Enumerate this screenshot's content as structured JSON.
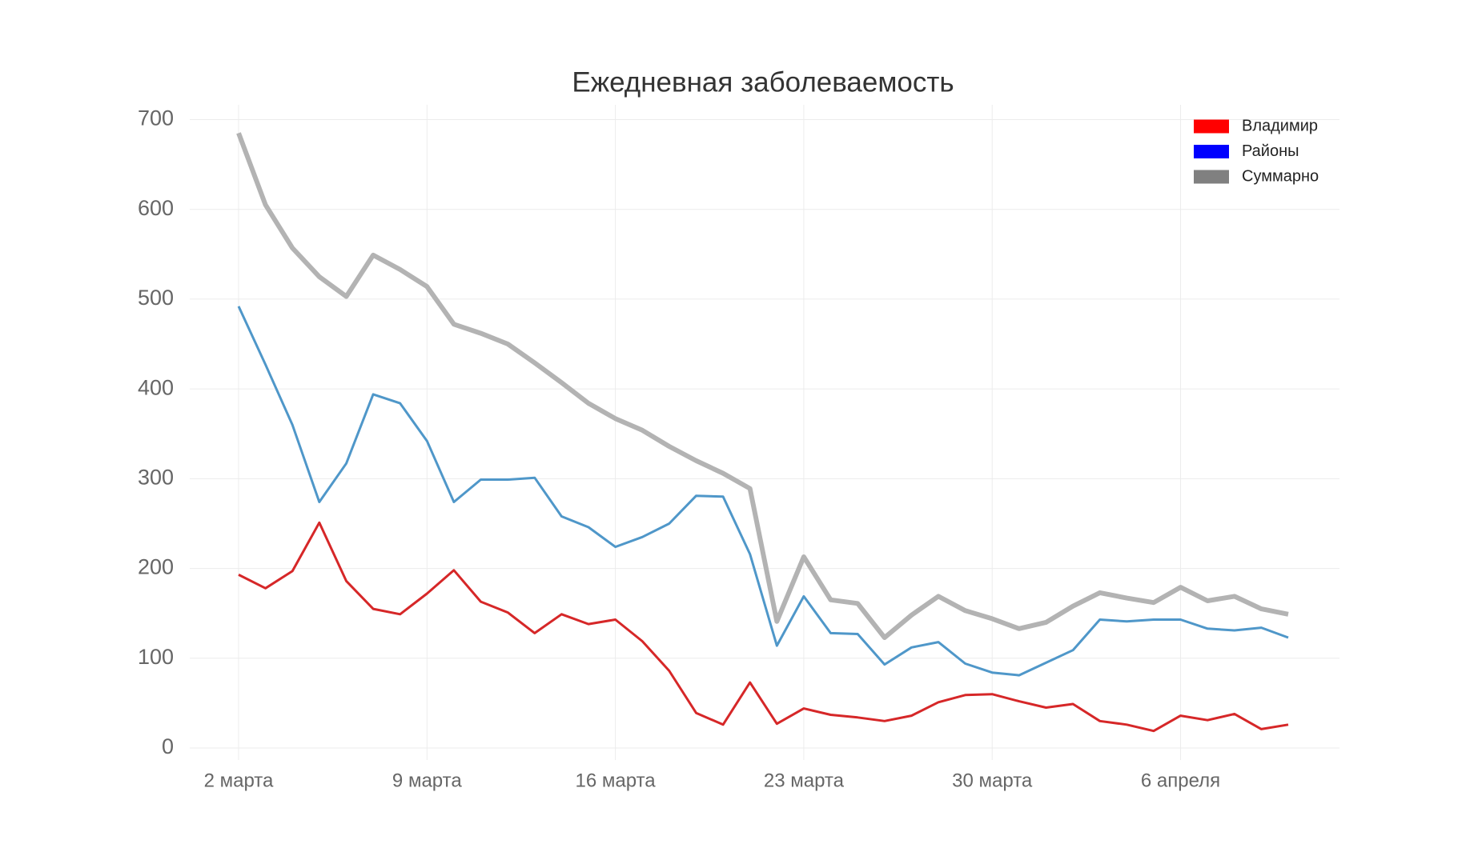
{
  "chart_data": {
    "type": "line",
    "title": "Ежедневная заболеваемость",
    "categories": [
      "2 марта",
      null,
      null,
      null,
      null,
      null,
      null,
      "9 марта",
      null,
      null,
      null,
      null,
      null,
      null,
      "16 марта",
      null,
      null,
      null,
      null,
      null,
      null,
      "23 марта",
      null,
      null,
      null,
      null,
      null,
      null,
      "30 марта",
      null,
      null,
      null,
      null,
      null,
      null,
      "6 апреля",
      null,
      null,
      null,
      null
    ],
    "series": [
      {
        "name": "Владимир",
        "color": "#d62728",
        "legend_color": "#ff0000",
        "width": 3,
        "values": [
          193,
          178,
          197,
          251,
          186,
          155,
          149,
          172,
          198,
          163,
          151,
          128,
          149,
          138,
          143,
          119,
          86,
          39,
          26,
          73,
          27,
          44,
          37,
          34,
          30,
          36,
          51,
          59,
          60,
          52,
          45,
          49,
          30,
          26,
          19,
          36,
          31,
          38,
          21,
          26
        ]
      },
      {
        "name": "Районы",
        "color": "#4f97c9",
        "legend_color": "#0000ff",
        "width": 3,
        "values": [
          492,
          427,
          360,
          274,
          317,
          394,
          384,
          342,
          274,
          299,
          299,
          301,
          258,
          246,
          224,
          235,
          250,
          281,
          280,
          216,
          114,
          169,
          128,
          127,
          93,
          112,
          118,
          94,
          84,
          81,
          95,
          109,
          143,
          141,
          143,
          143,
          133,
          131,
          134,
          123
        ]
      },
      {
        "name": "Суммарно",
        "color": "#b3b3b3",
        "legend_color": "#808080",
        "width": 6,
        "values": [
          685,
          605,
          557,
          525,
          503,
          549,
          533,
          514,
          472,
          462,
          450,
          429,
          407,
          384,
          367,
          354,
          336,
          320,
          306,
          289,
          141,
          213,
          165,
          161,
          123,
          148,
          169,
          153,
          144,
          133,
          140,
          158,
          173,
          167,
          162,
          179,
          164,
          169,
          155,
          149
        ]
      }
    ],
    "ylim": [
      0,
      700
    ],
    "yticks": [
      0,
      100,
      200,
      300,
      400,
      500,
      600,
      700
    ],
    "grid": true,
    "legend": "upper right"
  }
}
